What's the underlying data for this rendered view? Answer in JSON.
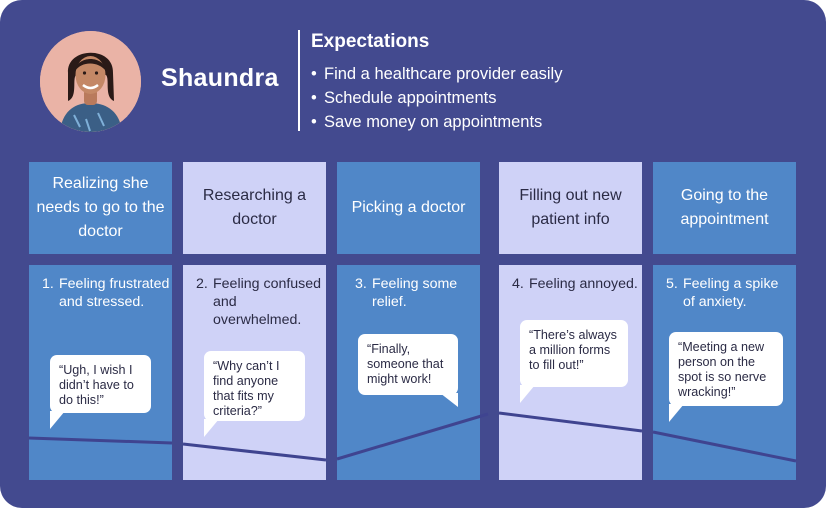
{
  "persona": {
    "name": "Shaundra"
  },
  "expectations": {
    "heading": "Expectations",
    "bullet": "•",
    "items": [
      "Find a healthcare provider easily",
      "Schedule appointments",
      "Save money on appointments"
    ]
  },
  "stages": [
    {
      "title": "Realizing she needs to go to the doctor",
      "number": "1.",
      "feeling": "Feeling frustrated and stressed.",
      "quote": "“Ugh, I wish I didn’t have to do this!”"
    },
    {
      "title": "Researching a doctor",
      "number": "2.",
      "feeling": "Feeling confused and overwhelmed.",
      "quote": "“Why can’t I find anyone that fits my criteria?”"
    },
    {
      "title": "Picking a doctor",
      "number": "3.",
      "feeling": "Feeling some relief.",
      "quote": "“Finally, someone that might work!"
    },
    {
      "title": "Filling out new patient info",
      "number": "4.",
      "feeling": "Feeling annoyed.",
      "quote": "“There’s always a million forms to fill out!”"
    },
    {
      "title": "Going to the appointment",
      "number": "5.",
      "feeling": "Feeling a spike of anxiety.",
      "quote": "“Meeting a new person on the spot is so nerve wracking!”"
    }
  ],
  "colors": {
    "background": "#434a8f",
    "stage_blue": "#5087c8",
    "stage_lavender": "#cfd2f7",
    "emotion_line": "#3f4490",
    "bubble": "#ffffff"
  }
}
